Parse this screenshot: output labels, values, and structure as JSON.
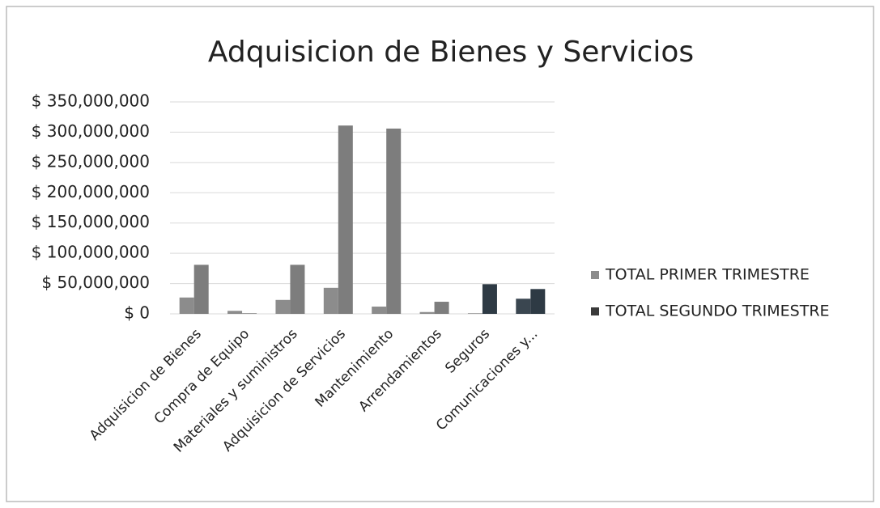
{
  "chart_data": {
    "type": "bar",
    "title": "Adquisicion de Bienes y Servicios",
    "categories": [
      "Adquisicion de Bienes",
      "Compra de Equipo",
      "Materiales y suministros",
      "Adquisicion de Servicios",
      "Mantenimiento",
      "Arrendamientos",
      "Seguros",
      "Comunicaciones y..."
    ],
    "series": [
      {
        "name": "TOTAL PRIMER  TRIMESTRE",
        "color": "#8c8c8c",
        "colors": [
          "#8c8c8c",
          "#8c8c8c",
          "#8c8c8c",
          "#8c8c8c",
          "#8c8c8c",
          "#8c8c8c",
          "#8c8c8c",
          "#3a4650"
        ],
        "values": [
          27000000,
          5000000,
          23000000,
          43000000,
          12000000,
          3000000,
          1000000,
          25000000
        ]
      },
      {
        "name": "TOTAL SEGUNDO TRIMESTRE",
        "color": "#3a3a3a",
        "colors": [
          "#7d7d7d",
          "#7d7d7d",
          "#7d7d7d",
          "#7d7d7d",
          "#7d7d7d",
          "#7d7d7d",
          "#2e3a44",
          "#2e3a44"
        ],
        "values": [
          81000000,
          1000000,
          81000000,
          311000000,
          306000000,
          20000000,
          49000000,
          41000000
        ]
      }
    ],
    "ylim": [
      0,
      350000000
    ],
    "yticks": [
      {
        "value": 0,
        "label": "$ 0"
      },
      {
        "value": 50000000,
        "label": "$ 50,000,000"
      },
      {
        "value": 100000000,
        "label": "$ 100,000,000"
      },
      {
        "value": 150000000,
        "label": "$ 150,000,000"
      },
      {
        "value": 200000000,
        "label": "$ 200,000,000"
      },
      {
        "value": 250000000,
        "label": "$ 250,000,000"
      },
      {
        "value": 300000000,
        "label": "$ 300,000,000"
      },
      {
        "value": 350000000,
        "label": "$ 350,000,000"
      }
    ],
    "grid": true,
    "legend": "right"
  }
}
